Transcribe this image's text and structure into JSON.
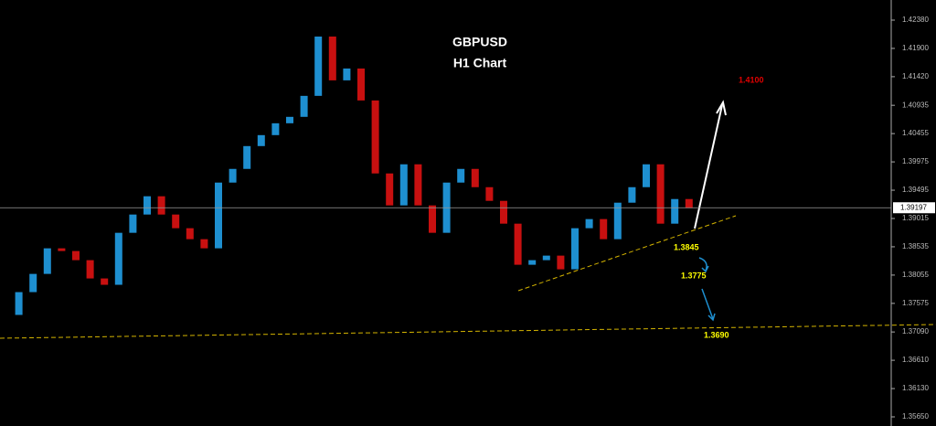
{
  "chart_data": {
    "type": "candlestick",
    "title": "GBPUSD",
    "subtitle": "H1 Chart",
    "annotations": [
      "1.4100",
      "1.3845",
      "1.3775",
      "1.3690"
    ],
    "values": [
      1.37379,
      1.37766,
      1.38075,
      1.38509,
      1.38463,
      1.38308,
      1.37998,
      1.3789,
      1.38772,
      1.39082,
      1.39392,
      1.39082,
      1.3885,
      1.38664,
      1.38509,
      1.39624,
      1.39856,
      1.40243,
      1.40429,
      1.4063,
      1.40739,
      1.41095,
      1.42101,
      1.41358,
      1.41559,
      1.41017,
      1.39779,
      1.39237,
      1.39934,
      1.39237,
      1.38772,
      1.39624,
      1.39856,
      1.39546,
      1.39314,
      1.38927,
      1.3823,
      1.38308,
      1.38385,
      1.38153,
      1.3885,
      1.39005,
      1.38664,
      1.39283,
      1.39546,
      1.39934,
      1.38927,
      1.39345,
      1.3919
    ],
    "up_color": "#1e8fd0",
    "down_color": "#c81010",
    "current_price": {
      "value": 1.39197,
      "label": "1.39197"
    },
    "ylim": [
      1.35495,
      1.42721
    ],
    "yticks": [
      {
        "value": 1.4238,
        "label": "1.42380"
      },
      {
        "value": 1.419,
        "label": "1.41900"
      },
      {
        "value": 1.4142,
        "label": "1.41420"
      },
      {
        "value": 1.40935,
        "label": "1.40935"
      },
      {
        "value": 1.40455,
        "label": "1.40455"
      },
      {
        "value": 1.39975,
        "label": "1.39975"
      },
      {
        "value": 1.39495,
        "label": "1.39495"
      },
      {
        "value": 1.39015,
        "label": "1.39015"
      },
      {
        "value": 1.38535,
        "label": "1.38535"
      },
      {
        "value": 1.38055,
        "label": "1.38055"
      },
      {
        "value": 1.37575,
        "label": "1.37575"
      },
      {
        "value": 1.3709,
        "label": "1.37090"
      },
      {
        "value": 1.3661,
        "label": "1.36610"
      },
      {
        "value": 1.3613,
        "label": "1.36130"
      },
      {
        "value": 1.3565,
        "label": "1.35650"
      }
    ]
  }
}
